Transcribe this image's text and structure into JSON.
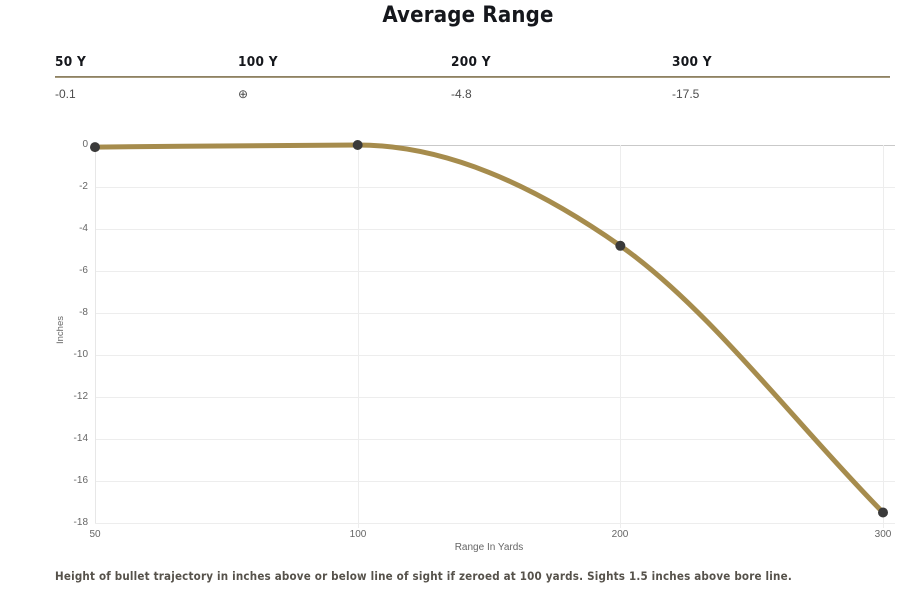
{
  "title": "Average Range",
  "summary_table": {
    "columns": [
      {
        "label": "50 Y",
        "value": "-0.1"
      },
      {
        "label": "100 Y",
        "value": "⊕"
      },
      {
        "label": "200 Y",
        "value": "-4.8"
      },
      {
        "label": "300 Y",
        "value": "-17.5"
      }
    ]
  },
  "chart_data": {
    "type": "line",
    "title": "Average Range",
    "categories": [
      "50",
      "100",
      "200",
      "300"
    ],
    "values": [
      -0.1,
      0,
      -4.8,
      -17.5
    ],
    "xlabel": "Range In Yards",
    "ylabel": "Inches",
    "ylim": [
      -18,
      0
    ],
    "y_tick_labels": [
      "0",
      "-2",
      "-4",
      "-6",
      "-8",
      "-10",
      "-12",
      "-14",
      "-16",
      "-18"
    ],
    "x_tick_labels": [
      "50",
      "100",
      "200",
      "300"
    ],
    "grid": true,
    "legend": "none",
    "line_color": "#a68c4d",
    "marker_color": "#3a3a3a",
    "gridline_color": "#ededed",
    "zero_line_color": "#c9c9c9"
  },
  "footer_note": "Height of bullet trajectory in inches above or below line of sight if zeroed at 100 yards. Sights 1.5 inches above bore line."
}
